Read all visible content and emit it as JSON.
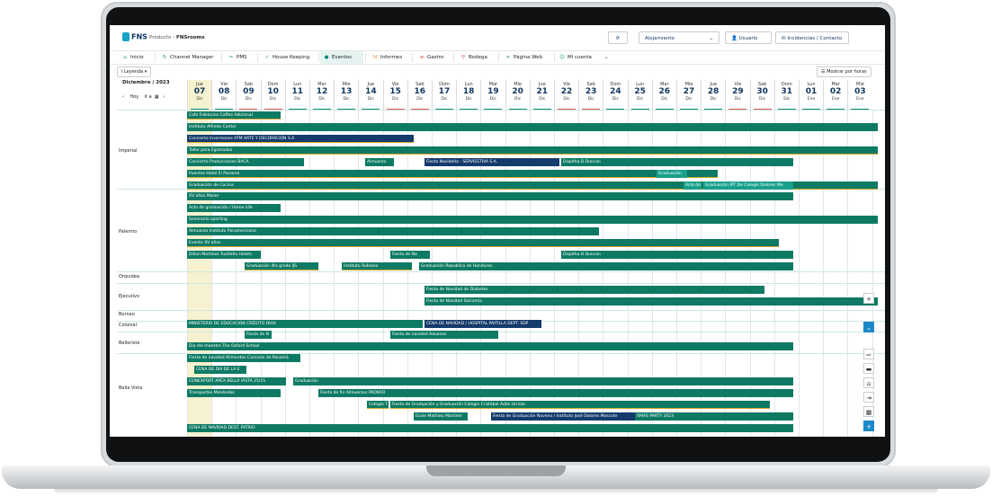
{
  "app": {
    "logo_text": "FNS",
    "breadcrumb_parent": "Producto",
    "breadcrumb_current": "FNSrooms",
    "property_select": "Alojamiento",
    "user_button": "Usuario",
    "support_button": "Incidencias / Contacto"
  },
  "nav": [
    {
      "label": "Inicio",
      "icon": "home-icon"
    },
    {
      "label": "Channel Manager",
      "icon": "channel-icon"
    },
    {
      "label": "PMS",
      "icon": "pms-icon"
    },
    {
      "label": "House Keeping",
      "icon": "broom-icon"
    },
    {
      "label": "Eventos",
      "icon": "events-icon"
    },
    {
      "label": "Informes",
      "icon": "chart-icon"
    },
    {
      "label": "Gastro",
      "icon": "gastro-icon"
    },
    {
      "label": "Bodega",
      "icon": "pin-icon"
    },
    {
      "label": "Página Web",
      "icon": "link-icon"
    },
    {
      "label": "Mi cuenta",
      "icon": "user-icon"
    }
  ],
  "toolbar": {
    "legend": "Leyenda",
    "show_hours": "Mostrar por horas",
    "month": "Diciembre / 2023",
    "today": "Hoy",
    "go": "Ir a"
  },
  "days": [
    {
      "name": "Jue",
      "num": "07",
      "month": "Dic",
      "today": true
    },
    {
      "name": "Vie",
      "num": "08",
      "month": "Dic"
    },
    {
      "name": "Sab",
      "num": "09",
      "month": "Dic",
      "weekend": true
    },
    {
      "name": "Dom",
      "num": "10",
      "month": "Dic",
      "weekend": true
    },
    {
      "name": "Lun",
      "num": "11",
      "month": "Dic"
    },
    {
      "name": "Mar",
      "num": "12",
      "month": "Dic"
    },
    {
      "name": "Mie",
      "num": "13",
      "month": "Dic"
    },
    {
      "name": "Jue",
      "num": "14",
      "month": "Dic"
    },
    {
      "name": "Vie",
      "num": "15",
      "month": "Dic",
      "weekend": true
    },
    {
      "name": "Sab",
      "num": "16",
      "month": "Dic",
      "weekend": true
    },
    {
      "name": "Dom",
      "num": "17",
      "month": "Dic"
    },
    {
      "name": "Lun",
      "num": "18",
      "month": "Dic"
    },
    {
      "name": "Mar",
      "num": "19",
      "month": "Dic"
    },
    {
      "name": "Mie",
      "num": "20",
      "month": "Dic"
    },
    {
      "name": "Jue",
      "num": "21",
      "month": "Dic"
    },
    {
      "name": "Vie",
      "num": "22",
      "month": "Dic",
      "weekend": true
    },
    {
      "name": "Sab",
      "num": "23",
      "month": "Dic",
      "weekend": true
    },
    {
      "name": "Dom",
      "num": "24",
      "month": "Dic"
    },
    {
      "name": "Lun",
      "num": "25",
      "month": "Dic"
    },
    {
      "name": "Mar",
      "num": "26",
      "month": "Dic"
    },
    {
      "name": "Mie",
      "num": "27",
      "month": "Dic"
    },
    {
      "name": "Jue",
      "num": "28",
      "month": "Dic"
    },
    {
      "name": "Vie",
      "num": "29",
      "month": "Dic",
      "weekend": true
    },
    {
      "name": "Sab",
      "num": "30",
      "month": "Dic",
      "weekend": true
    },
    {
      "name": "Dom",
      "num": "31",
      "month": "Dic"
    },
    {
      "name": "Lun",
      "num": "01",
      "month": "Ene"
    },
    {
      "name": "Mar",
      "num": "02",
      "month": "Ene"
    },
    {
      "name": "Mie",
      "num": "03",
      "month": "Ene"
    }
  ],
  "rooms": [
    "Imperial",
    "Palermo",
    "Orquidea",
    "Ejecutivo",
    "Borneo",
    "Colonial",
    "Belleriste",
    "Bella Vista"
  ],
  "events": {
    "e1": "Cafe Folklorico Coffee Adicional",
    "e2": "Instituto Alfredo Cantor",
    "e3": "Concierto Inversiones ATM ARTE Y DECORACIÓN S.A",
    "e4": "Taller para Egresados",
    "e5": "Concierto Producciones BACA",
    "e6": "Almuerzo",
    "e7": "Fiesta Navideña - SERVIESTIVA S.A.",
    "e8": "Dispitha B Duncan",
    "e9": "Puentes Hotel El Panamá",
    "e10": "Graduación",
    "e11": "Graduación de Cocina",
    "e12": "Acto de",
    "e13": "Graduación IPT De Colegio Dolores Mo",
    "e14": "XV años Malier",
    "e15": "Acto de graduación / Home Life",
    "e16": "Seminario sporting",
    "e17": "Almuerzo Instituto Panamericano",
    "e18": "Evento XV años",
    "e19": "Dilian Martínez Tuxtleño Hotels",
    "e20": "Fiesta de Na",
    "e21": "Dispitha B Duncan",
    "e22": "Graduación 4to grado IJS",
    "e23": "Instituto Rubiano",
    "e24": "Graduación Republica de Honduras",
    "e25": "Fiesta de Navidad de Diabetes",
    "e26": "Fiesta de Navidad Solcomia",
    "e27": "MINISTERIO DE EDUCACION CRÉDITO DHIA",
    "e28": "CENA DE NAVIDAD / HOSPITAL PAITILLA DEPT. SDP",
    "e29": "Fiesta de N",
    "e30": "Fiesta de navidad Aduanas",
    "e31": "Dia del maestro The Oxford School",
    "e32": "Fiesta de navidad Alimentos Carnicos de Panamá",
    "e33": "CENA DE DIA DE LA E",
    "e34": "CONEXPORT APEX BELLA VISTA 25/1S",
    "e35": "Graduación",
    "e36": "Transportes Menéndez",
    "e37": "Fiesta de fin Almuerzos PAOKAO",
    "e38": "Colegio T",
    "e39": "Fiesta de Graduación y Graduación Colegio Cristóbal Adán Urriola",
    "e40": "Ecole Mathieu Martinel",
    "e41": "Fiesta de Graduación Noveno / Instituto José Dolores Moscote",
    "e42": "XMAS PARTY 2023",
    "e43": "CENA DE NAVIDAD DEST. PATRIO"
  }
}
